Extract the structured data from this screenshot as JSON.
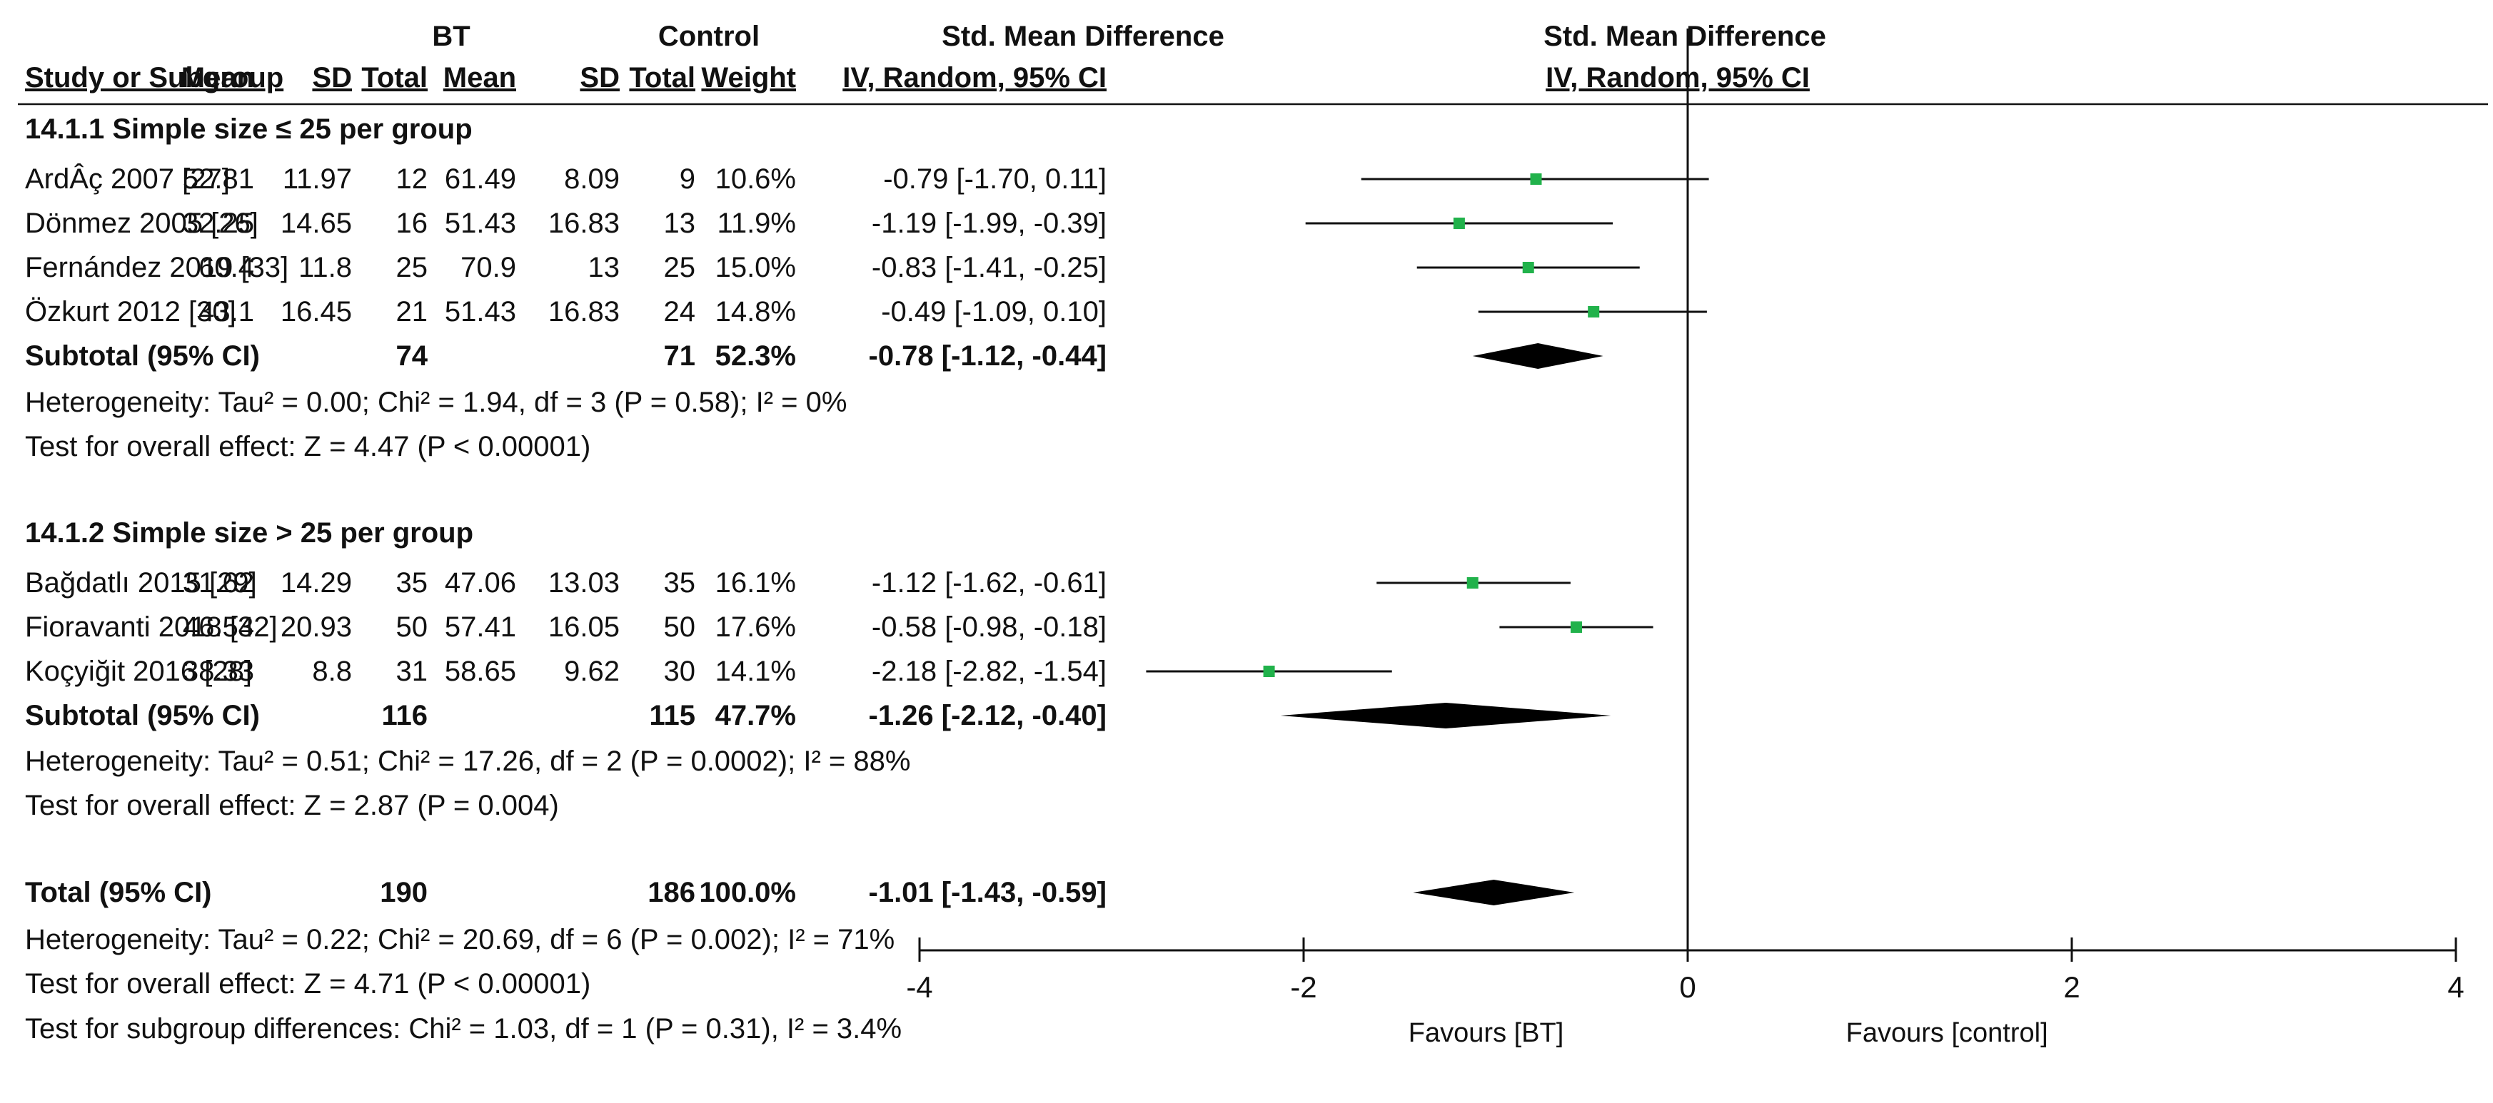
{
  "header": {
    "group_bt": "BT",
    "group_control": "Control",
    "smd_title": "Std. Mean Difference",
    "plot_title": "Std. Mean Difference",
    "col_study": "Study or Subgroup",
    "col_mean_bt": "Mean",
    "col_sd_bt": "SD",
    "col_total_bt": "Total",
    "col_mean_ctrl": "Mean",
    "col_sd_ctrl": "SD",
    "col_total_ctrl": "Total",
    "col_weight": "Weight",
    "col_ci": "IV, Random, 95% CI",
    "plot_subtitle": "IV, Random, 95% CI"
  },
  "subgroups": [
    {
      "title": "14.1.1 Simple size ≤ 25 per group",
      "studies": [
        {
          "name": "ArdÂç 2007 [27]",
          "mean_bt": "52.81",
          "sd_bt": "11.97",
          "total_bt": "12",
          "mean_ctrl": "61.49",
          "sd_ctrl": "8.09",
          "total_ctrl": "9",
          "weight": "10.6%",
          "ci_text": "-0.79 [-1.70, 0.11]",
          "est": -0.79,
          "lo": -1.7,
          "hi": 0.11
        },
        {
          "name": "Dönmez 2005 [26]",
          "mean_bt": "32.25",
          "sd_bt": "14.65",
          "total_bt": "16",
          "mean_ctrl": "51.43",
          "sd_ctrl": "16.83",
          "total_ctrl": "13",
          "weight": "11.9%",
          "ci_text": "-1.19 [-1.99, -0.39]",
          "est": -1.19,
          "lo": -1.99,
          "hi": -0.39
        },
        {
          "name": "Fernández 2019 [33]",
          "mean_bt": "60.4",
          "sd_bt": "11.8",
          "total_bt": "25",
          "mean_ctrl": "70.9",
          "sd_ctrl": "13",
          "total_ctrl": "25",
          "weight": "15.0%",
          "ci_text": "-0.83 [-1.41, -0.25]",
          "est": -0.83,
          "lo": -1.41,
          "hi": -0.25
        },
        {
          "name": "Özkurt 2012 [30]",
          "mean_bt": "43.1",
          "sd_bt": "16.45",
          "total_bt": "21",
          "mean_ctrl": "51.43",
          "sd_ctrl": "16.83",
          "total_ctrl": "24",
          "weight": "14.8%",
          "ci_text": "-0.49 [-1.09, 0.10]",
          "est": -0.49,
          "lo": -1.09,
          "hi": 0.1
        }
      ],
      "subtotal": {
        "label": "Subtotal (95% CI)",
        "total_bt": "74",
        "total_ctrl": "71",
        "weight": "52.3%",
        "ci_text": "-0.78 [-1.12, -0.44]",
        "est": -0.78,
        "lo": -1.12,
        "hi": -0.44
      },
      "heterogeneity": "Heterogeneity: Tau² = 0.00; Chi² = 1.94, df = 3 (P = 0.58); I² = 0%",
      "overall": "Test for overall effect: Z = 4.47 (P < 0.00001)"
    },
    {
      "title": "14.1.2 Simple size > 25 per group",
      "studies": [
        {
          "name": "Bağdatlı 2015 [29]",
          "mean_bt": "31.62",
          "sd_bt": "14.29",
          "total_bt": "35",
          "mean_ctrl": "47.06",
          "sd_ctrl": "13.03",
          "total_ctrl": "35",
          "weight": "16.1%",
          "ci_text": "-1.12 [-1.62, -0.61]",
          "est": -1.12,
          "lo": -1.62,
          "hi": -0.61
        },
        {
          "name": "Fioravanti 2018 [32]",
          "mean_bt": "46.54",
          "sd_bt": "20.93",
          "total_bt": "50",
          "mean_ctrl": "57.41",
          "sd_ctrl": "16.05",
          "total_ctrl": "50",
          "weight": "17.6%",
          "ci_text": "-0.58 [-0.98, -0.18]",
          "est": -0.58,
          "lo": -0.98,
          "hi": -0.18
        },
        {
          "name": "Koçyiğit 2016 [28]",
          "mean_bt": "38.33",
          "sd_bt": "8.8",
          "total_bt": "31",
          "mean_ctrl": "58.65",
          "sd_ctrl": "9.62",
          "total_ctrl": "30",
          "weight": "14.1%",
          "ci_text": "-2.18 [-2.82, -1.54]",
          "est": -2.18,
          "lo": -2.82,
          "hi": -1.54
        }
      ],
      "subtotal": {
        "label": "Subtotal (95% CI)",
        "total_bt": "116",
        "total_ctrl": "115",
        "weight": "47.7%",
        "ci_text": "-1.26 [-2.12, -0.40]",
        "est": -1.26,
        "lo": -2.12,
        "hi": -0.4
      },
      "heterogeneity": "Heterogeneity: Tau² = 0.51; Chi² = 17.26, df = 2 (P = 0.0002); I² = 88%",
      "overall": "Test for overall effect: Z = 2.87 (P = 0.004)"
    }
  ],
  "total": {
    "label": "Total (95% CI)",
    "total_bt": "190",
    "total_ctrl": "186",
    "weight": "100.0%",
    "ci_text": "-1.01 [-1.43, -0.59]",
    "est": -1.01,
    "lo": -1.43,
    "hi": -0.59
  },
  "footer": {
    "heterogeneity": "Heterogeneity: Tau² = 0.22; Chi² = 20.69, df = 6 (P = 0.002); I² = 71%",
    "overall": "Test for overall effect: Z = 4.71 (P < 0.00001)",
    "subgroup_diff": "Test for subgroup differences: Chi² = 1.03, df = 1 (P = 0.31), I² = 3.4%"
  },
  "axis": {
    "xlim": [
      -4,
      4
    ],
    "ticks": [
      -4,
      -2,
      0,
      2,
      4
    ],
    "tick_labels": [
      "-4",
      "-2",
      "0",
      "2",
      "4"
    ],
    "favours_left": "Favours [BT]",
    "favours_right": "Favours [control]"
  },
  "colors": {
    "marker": "#21b24b",
    "line": "#111111",
    "diamond": "#000000"
  },
  "chart_data": {
    "type": "forest",
    "title": "Std. Mean Difference",
    "xlabel": "IV, Random, 95% CI",
    "xlim": [
      -4,
      4
    ],
    "xticks": [
      -4,
      -2,
      0,
      2,
      4
    ],
    "series": [
      {
        "name": "ArdÂç 2007 [27]",
        "est": -0.79,
        "lo": -1.7,
        "hi": 0.11
      },
      {
        "name": "Dönmez 2005 [26]",
        "est": -1.19,
        "lo": -1.99,
        "hi": -0.39
      },
      {
        "name": "Fernández 2019 [33]",
        "est": -0.83,
        "lo": -1.41,
        "hi": -0.25
      },
      {
        "name": "Özkurt 2012 [30]",
        "est": -0.49,
        "lo": -1.09,
        "hi": 0.1
      },
      {
        "name": "Subtotal 14.1.1",
        "est": -0.78,
        "lo": -1.12,
        "hi": -0.44
      },
      {
        "name": "Bağdatlı 2015 [29]",
        "est": -1.12,
        "lo": -1.62,
        "hi": -0.61
      },
      {
        "name": "Fioravanti 2018 [32]",
        "est": -0.58,
        "lo": -0.98,
        "hi": -0.18
      },
      {
        "name": "Koçyiğit 2016 [28]",
        "est": -2.18,
        "lo": -2.82,
        "hi": -1.54
      },
      {
        "name": "Subtotal 14.1.2",
        "est": -1.26,
        "lo": -2.12,
        "hi": -0.4
      },
      {
        "name": "Total",
        "est": -1.01,
        "lo": -1.43,
        "hi": -0.59
      }
    ],
    "legend": [
      "Favours [BT]",
      "Favours [control]"
    ]
  }
}
